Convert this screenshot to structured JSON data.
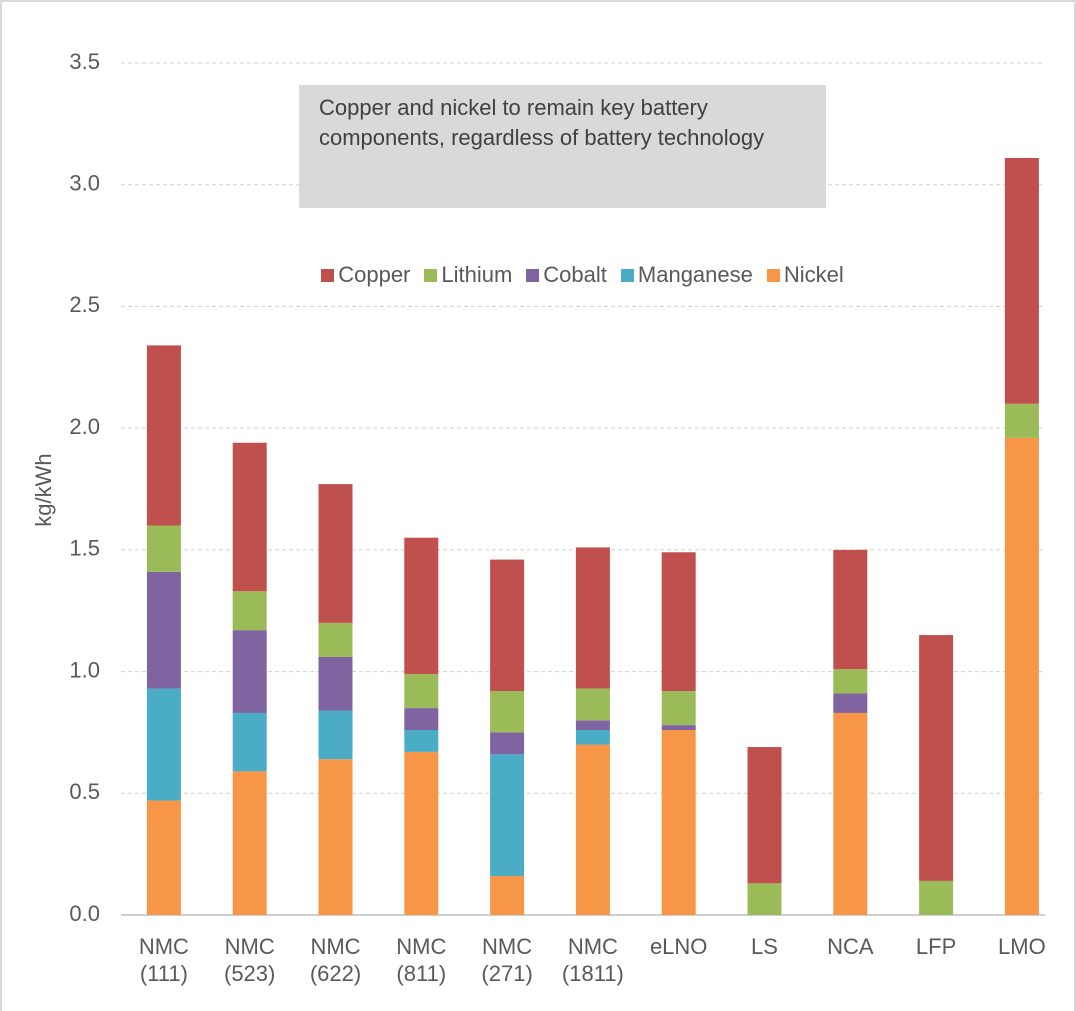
{
  "chart_data": {
    "type": "stacked_bar",
    "y_label": "kg/kWh",
    "annotation": "Copper and nickel to remain key battery components, regardless of battery technology",
    "categories": [
      "NMC (111)",
      "NMC (523)",
      "NMC (622)",
      "NMC (811)",
      "NMC (271)",
      "NMC (1811)",
      "eLNO",
      "LS",
      "NCA",
      "LFP",
      "LMO"
    ],
    "series": [
      {
        "name": "Copper",
        "color": "#c0504d",
        "values": [
          0.74,
          0.61,
          0.57,
          0.56,
          0.54,
          0.58,
          0.57,
          0.56,
          0.49,
          1.01,
          1.01
        ]
      },
      {
        "name": "Lithium",
        "color": "#9bbb59",
        "values": [
          0.19,
          0.16,
          0.14,
          0.14,
          0.17,
          0.13,
          0.14,
          0.13,
          0.1,
          0.14,
          0.14
        ]
      },
      {
        "name": "Cobalt",
        "color": "#8064a2",
        "values": [
          0.48,
          0.34,
          0.22,
          0.09,
          0.09,
          0.04,
          0.02,
          0,
          0.08,
          0,
          0
        ]
      },
      {
        "name": "Manganese",
        "color": "#4bacc6",
        "values": [
          0.46,
          0.24,
          0.2,
          0.09,
          0.5,
          0.06,
          0,
          0,
          0,
          0,
          0
        ]
      },
      {
        "name": "Nickel",
        "color": "#f79646",
        "values": [
          0.47,
          0.59,
          0.64,
          0.67,
          0.16,
          0.7,
          0.76,
          0,
          0.83,
          0,
          1.96
        ]
      }
    ],
    "ylim": [
      0,
      3.5
    ],
    "yticks": [
      {
        "value": 0,
        "label": "0.0"
      },
      0.5,
      {
        "value": 1,
        "label": "1.0"
      },
      1.5,
      {
        "value": 2,
        "label": "2.0"
      },
      2.5,
      {
        "value": 3,
        "label": "3.0"
      },
      3.5
    ],
    "grid": true
  }
}
